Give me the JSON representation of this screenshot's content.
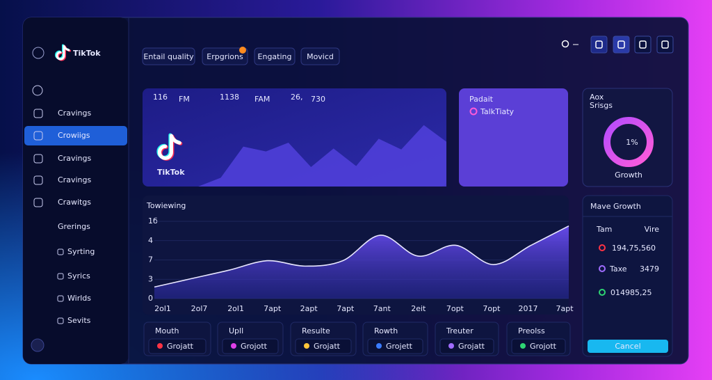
{
  "brand": "TikTok",
  "sidebar": {
    "items": [
      "Cravings",
      "Crowiigs",
      "Cravings",
      "Cravings",
      "Crawitgs",
      "Grerings",
      "Syrting",
      "Syrics",
      "Wirlds",
      "Sevits"
    ],
    "active": 1
  },
  "tabs": [
    "Entail quality",
    "Erpgrions",
    "Engating",
    "Movicd"
  ],
  "hero": {
    "stats": [
      {
        "value": "116",
        "unit": "FM"
      },
      {
        "value": "1138",
        "unit": "FAM"
      },
      {
        "value": "26,",
        "unit": "730"
      }
    ],
    "logo_text": "TikTok",
    "chart": {
      "values": [
        0,
        9,
        41,
        36,
        45,
        20,
        39,
        21,
        49,
        38,
        63,
        46
      ],
      "ylim": [
        0,
        100
      ],
      "color": "#4f3fd8"
    }
  },
  "card": {
    "title": "Padait",
    "item": "TalkTiaty"
  },
  "donut": {
    "title_lines": [
      "Aox",
      "Srisgs"
    ],
    "label": "1%",
    "caption": "Growth"
  },
  "main_chart": {
    "title": "Towiewing",
    "ytick_labels": [
      "1б",
      "4",
      "7",
      "3",
      "0"
    ],
    "categories": [
      "2ol1",
      "2ol7",
      "2ol1",
      "7apt",
      "2apt",
      "7apt",
      "7ant",
      "2eit",
      "7opt",
      "7opt",
      "2017",
      "7apt"
    ],
    "values": [
      15,
      26,
      37,
      49,
      42,
      49,
      82,
      55,
      69,
      44,
      69,
      94
    ],
    "ylim": [
      0,
      100
    ],
    "color": "#5a42e0"
  },
  "legend_cards": [
    {
      "title": "Mouth",
      "item": "Grojatt",
      "color": "#ff3344"
    },
    {
      "title": "Upll",
      "item": "Grojott",
      "color": "#e040e8"
    },
    {
      "title": "Resulte",
      "item": "Grojatt",
      "color": "#ffc53a"
    },
    {
      "title": "Rowth",
      "item": "Grojett",
      "color": "#3a7bff"
    },
    {
      "title": "Treuter",
      "item": "Grojatt",
      "color": "#a06cff"
    },
    {
      "title": "Preolss",
      "item": "Grojott",
      "color": "#2ed573"
    }
  ],
  "growth_panel": {
    "title": "Mave Growth",
    "header": [
      "Tam",
      "Vire"
    ],
    "rows": [
      {
        "text": "194,75,560",
        "color": "#ffffff"
      },
      {
        "text": "Taxe",
        "value": "3479",
        "color": "#ffffff"
      },
      {
        "text": "014985,25",
        "color": "#4df0a0"
      }
    ],
    "button": "Cancel"
  }
}
